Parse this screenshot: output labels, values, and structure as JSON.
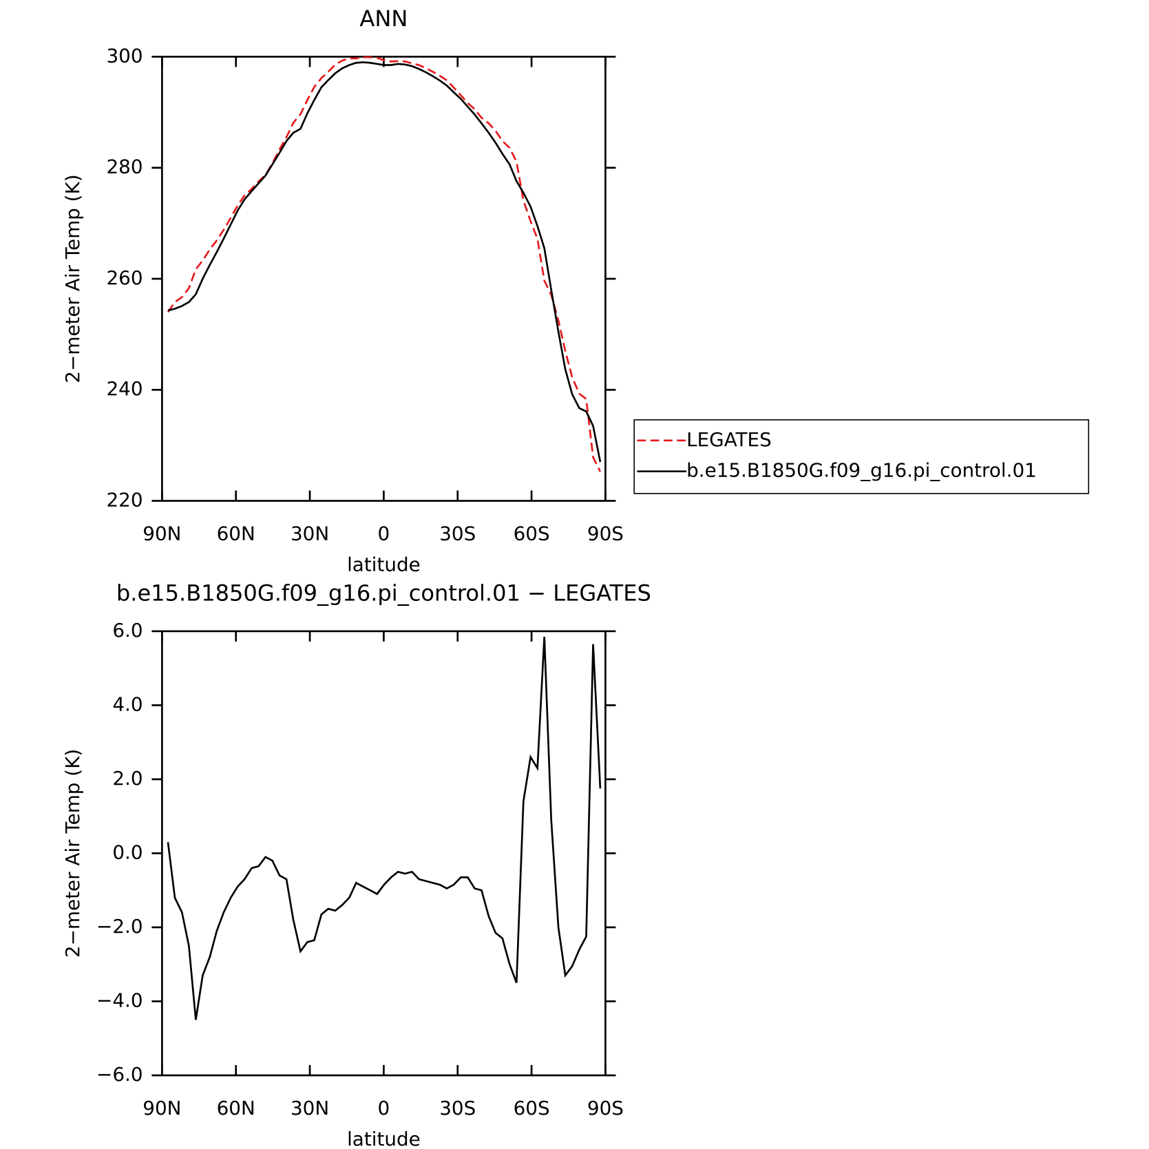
{
  "chart_data": [
    {
      "type": "line",
      "title": "ANN",
      "xlabel": "latitude",
      "ylabel": "2−meter Air Temp (K)",
      "x": [
        87.6,
        84.8,
        81.9,
        79.1,
        76.3,
        73.5,
        70.6,
        67.8,
        65.0,
        62.1,
        59.3,
        56.5,
        53.6,
        50.8,
        48.0,
        45.2,
        42.3,
        39.5,
        36.7,
        33.8,
        31.0,
        28.2,
        25.3,
        22.5,
        19.7,
        16.9,
        14.0,
        11.2,
        8.4,
        5.5,
        2.7,
        -0.1,
        -3.0,
        -5.8,
        -8.6,
        -11.5,
        -14.3,
        -17.1,
        -19.9,
        -22.8,
        -25.6,
        -28.4,
        -31.3,
        -34.1,
        -36.9,
        -39.7,
        -42.6,
        -45.4,
        -48.2,
        -51.1,
        -53.9,
        -56.7,
        -59.6,
        -62.4,
        -65.2,
        -68.0,
        -70.9,
        -73.7,
        -76.5,
        -79.4,
        -82.2,
        -85.0,
        -87.9
      ],
      "series": [
        {
          "name": "LEGATES",
          "color": "#e41a1c",
          "linestyle": "dashed",
          "values": [
            254.0,
            255.8,
            256.7,
            258.3,
            261.7,
            263.3,
            265.3,
            266.9,
            268.8,
            271.0,
            273.2,
            275.0,
            276.2,
            277.55,
            278.7,
            280.8,
            283.3,
            285.5,
            288.1,
            289.65,
            292.2,
            294.55,
            296.15,
            297.3,
            298.55,
            299.3,
            299.7,
            299.7,
            299.9,
            299.9,
            299.8,
            299.35,
            299.15,
            299.2,
            299.15,
            298.8,
            298.5,
            297.95,
            297.3,
            296.55,
            295.75,
            294.45,
            293.05,
            291.65,
            290.55,
            289.0,
            288.0,
            286.65,
            284.8,
            283.6,
            281.1,
            274.1,
            270.4,
            267.2,
            259.65,
            257.1,
            252.5,
            247.0,
            242.25,
            239.3,
            238.35,
            227.85,
            225.25
          ]
        },
        {
          "name": "b.e15.B1850G.f09_g16.pi_control.01",
          "color": "#000000",
          "linestyle": "solid",
          "values": [
            254.3,
            254.6,
            255.1,
            255.8,
            257.2,
            260.0,
            262.5,
            264.8,
            267.2,
            269.8,
            272.3,
            274.3,
            275.8,
            277.2,
            278.6,
            280.6,
            282.7,
            284.8,
            286.3,
            287.0,
            289.8,
            292.2,
            294.5,
            295.8,
            297.0,
            297.9,
            298.5,
            298.9,
            299.0,
            298.9,
            298.7,
            298.5,
            298.5,
            298.7,
            298.6,
            298.3,
            297.8,
            297.2,
            296.5,
            295.7,
            294.8,
            293.6,
            292.4,
            291.0,
            289.6,
            288.0,
            286.3,
            284.5,
            282.5,
            280.6,
            277.6,
            275.5,
            273.0,
            269.5,
            265.5,
            258.0,
            250.5,
            243.7,
            239.2,
            236.7,
            236.1,
            233.5,
            227.0
          ]
        }
      ],
      "xlim": [
        90,
        -90
      ],
      "xticks": [
        {
          "value": 90,
          "label": "90N"
        },
        {
          "value": 60,
          "label": "60N"
        },
        {
          "value": 30,
          "label": "30N"
        },
        0,
        {
          "value": -30,
          "label": "30S"
        },
        {
          "value": -60,
          "label": "60S"
        },
        {
          "value": -90,
          "label": "90S"
        }
      ],
      "ylim": [
        220,
        300
      ],
      "yticks": [
        220,
        240,
        260,
        280,
        300
      ],
      "legend": "right"
    },
    {
      "type": "line",
      "title": "b.e15.B1850G.f09_g16.pi_control.01 − LEGATES",
      "xlabel": "latitude",
      "ylabel": "2−meter Air Temp (K)",
      "x": [
        87.6,
        84.8,
        81.9,
        79.1,
        76.3,
        73.5,
        70.6,
        67.8,
        65.0,
        62.1,
        59.3,
        56.5,
        53.6,
        50.8,
        48.0,
        45.2,
        42.3,
        39.5,
        36.7,
        33.8,
        31.0,
        28.2,
        25.3,
        22.5,
        19.7,
        16.9,
        14.0,
        11.2,
        8.4,
        5.5,
        2.7,
        -0.1,
        -3.0,
        -5.8,
        -8.6,
        -11.5,
        -14.3,
        -17.1,
        -19.9,
        -22.8,
        -25.6,
        -28.4,
        -31.3,
        -34.1,
        -36.9,
        -39.7,
        -42.6,
        -45.4,
        -48.2,
        -51.1,
        -53.9,
        -56.7,
        -59.6,
        -62.4,
        -65.2,
        -68.0,
        -70.9,
        -73.7,
        -76.5,
        -79.4,
        -82.2,
        -85.0,
        -87.9
      ],
      "series": [
        {
          "color": "#000000",
          "linestyle": "solid",
          "values": [
            0.3,
            -1.2,
            -1.6,
            -2.5,
            -4.5,
            -3.3,
            -2.8,
            -2.1,
            -1.6,
            -1.2,
            -0.9,
            -0.7,
            -0.4,
            -0.35,
            -0.1,
            -0.2,
            -0.6,
            -0.7,
            -1.8,
            -2.65,
            -2.4,
            -2.35,
            -1.65,
            -1.5,
            -1.55,
            -1.4,
            -1.2,
            -0.8,
            -0.9,
            -1.0,
            -1.1,
            -0.85,
            -0.65,
            -0.5,
            -0.55,
            -0.5,
            -0.7,
            -0.75,
            -0.8,
            -0.85,
            -0.95,
            -0.85,
            -0.65,
            -0.65,
            -0.95,
            -1.0,
            -1.7,
            -2.15,
            -2.3,
            -3.0,
            -3.5,
            1.4,
            2.6,
            2.3,
            5.85,
            0.9,
            -2.0,
            -3.3,
            -3.05,
            -2.6,
            -2.25,
            5.65,
            1.75
          ]
        }
      ],
      "xlim": [
        90,
        -90
      ],
      "xticks": [
        {
          "value": 90,
          "label": "90N"
        },
        {
          "value": 60,
          "label": "60N"
        },
        {
          "value": 30,
          "label": "30N"
        },
        0,
        {
          "value": -30,
          "label": "30S"
        },
        {
          "value": -60,
          "label": "60S"
        },
        {
          "value": -90,
          "label": "90S"
        }
      ],
      "ylim": [
        -6,
        6
      ],
      "yticks": [
        {
          "value": -6,
          "label": "−6.0"
        },
        {
          "value": -4,
          "label": "−4.0"
        },
        {
          "value": -2,
          "label": "−2.0"
        },
        {
          "value": 0,
          "label": "0.0"
        },
        {
          "value": 2,
          "label": "2.0"
        },
        {
          "value": 4,
          "label": "4.0"
        },
        {
          "value": 6,
          "label": "6.0"
        }
      ]
    }
  ]
}
